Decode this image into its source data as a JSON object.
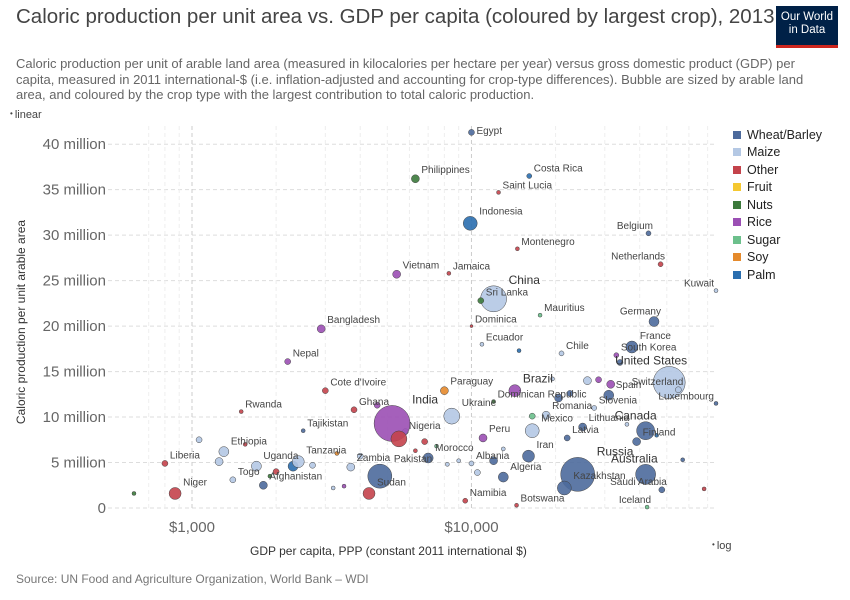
{
  "header": {
    "title": "Caloric production per unit area vs. GDP per capita (coloured by largest crop), 2013",
    "subtitle": "Caloric production per unit of arable land area (measured in kilocalories per hectare per year) versus gross domestic product (GDP) per capita, measured in 2011 international-$ (i.e. inflation-adjusted and accounting for crop-type differences). Bubble are sized by arable land area, and coloured by the crop type with the largest contribution to total caloric production.",
    "logo_line1": "Our World",
    "logo_line2": "in Data"
  },
  "footer": {
    "source": "Source: UN Food and Agriculture Organization, World Bank – WDI"
  },
  "chart_data": {
    "type": "scatter",
    "xlabel": "GDP per capita, PPP (constant 2011 international $)",
    "ylabel": "Caloric production per unit arable area",
    "x_scale": "log",
    "y_scale": "linear",
    "x_scale_label": "log",
    "y_scale_label": "linear",
    "xlim": [
      600,
      75000
    ],
    "ylim": [
      0,
      42000000
    ],
    "x_ticks": [
      {
        "value": 1000,
        "label": "$1,000"
      },
      {
        "value": 10000,
        "label": "$10,000"
      }
    ],
    "y_ticks": [
      {
        "value": 0,
        "label": "0"
      },
      {
        "value": 5000000,
        "label": "5 million"
      },
      {
        "value": 10000000,
        "label": "10 million"
      },
      {
        "value": 15000000,
        "label": "15 million"
      },
      {
        "value": 20000000,
        "label": "20 million"
      },
      {
        "value": 25000000,
        "label": "25 million"
      },
      {
        "value": 30000000,
        "label": "30 million"
      },
      {
        "value": 35000000,
        "label": "35 million"
      },
      {
        "value": 40000000,
        "label": "40 million"
      }
    ],
    "grid": true,
    "legend_position": "right",
    "legend": [
      {
        "name": "Wheat/Barley",
        "color": "#4C6A9C"
      },
      {
        "name": "Maize",
        "color": "#B4C8E4"
      },
      {
        "name": "Other",
        "color": "#C4434B"
      },
      {
        "name": "Fruit",
        "color": "#F5C830"
      },
      {
        "name": "Nuts",
        "color": "#3C7A3C"
      },
      {
        "name": "Rice",
        "color": "#9B4FB4"
      },
      {
        "name": "Sugar",
        "color": "#6CC08C"
      },
      {
        "name": "Soy",
        "color": "#E58A2C"
      },
      {
        "name": "Palm",
        "color": "#2A6EAF"
      }
    ],
    "points": [
      {
        "label": "Egypt",
        "x": 10000,
        "y": 41300000,
        "r": 3,
        "crop": "Wheat/Barley"
      },
      {
        "label": "Costa Rica",
        "x": 16100,
        "y": 36500000,
        "r": 2.5,
        "crop": "Palm"
      },
      {
        "label": "Philippines",
        "x": 6300,
        "y": 36200000,
        "r": 4,
        "crop": "Nuts"
      },
      {
        "label": "Saint Lucia",
        "x": 12500,
        "y": 34700000,
        "r": 2,
        "crop": "Other"
      },
      {
        "label": "Belgium",
        "x": 43000,
        "y": 30200000,
        "r": 2.5,
        "crop": "Wheat/Barley"
      },
      {
        "label": "Indonesia",
        "x": 9900,
        "y": 31300000,
        "r": 7,
        "crop": "Palm"
      },
      {
        "label": "Montenegro",
        "x": 14600,
        "y": 28500000,
        "r": 2,
        "crop": "Other"
      },
      {
        "label": "Netherlands",
        "x": 47500,
        "y": 26800000,
        "r": 2.5,
        "crop": "Other"
      },
      {
        "label": "Vietnam",
        "x": 5400,
        "y": 25700000,
        "r": 4,
        "crop": "Rice"
      },
      {
        "label": "Jamaica",
        "x": 8300,
        "y": 25800000,
        "r": 2,
        "crop": "Other"
      },
      {
        "label": "Kuwait",
        "x": 78000,
        "y": 23900000,
        "r": 2,
        "crop": "Maize"
      },
      {
        "label": "China",
        "x": 12000,
        "y": 23000000,
        "r": 13,
        "crop": "Maize"
      },
      {
        "label": "Sri Lanka",
        "x": 10800,
        "y": 22800000,
        "r": 3,
        "crop": "Nuts"
      },
      {
        "label": "Mauritius",
        "x": 17600,
        "y": 21200000,
        "r": 2,
        "crop": "Sugar"
      },
      {
        "label": "Germany",
        "x": 45000,
        "y": 20500000,
        "r": 5,
        "crop": "Wheat/Barley"
      },
      {
        "label": "Bangladesh",
        "x": 2900,
        "y": 19700000,
        "r": 4,
        "crop": "Rice"
      },
      {
        "label": "Dominica",
        "x": 10000,
        "y": 20000000,
        "r": 1.5,
        "crop": "Other"
      },
      {
        "label": "Ecuador",
        "x": 10900,
        "y": 18000000,
        "r": 2,
        "crop": "Maize"
      },
      {
        "label": "France",
        "x": 37500,
        "y": 17700000,
        "r": 6,
        "crop": "Wheat/Barley"
      },
      {
        "label": "Chile",
        "x": 21000,
        "y": 17000000,
        "r": 2.5,
        "crop": "Maize"
      },
      {
        "label": "South Korea",
        "x": 33000,
        "y": 16800000,
        "r": 2.5,
        "crop": "Rice"
      },
      {
        "label": "Nepal",
        "x": 2200,
        "y": 16100000,
        "r": 3,
        "crop": "Rice"
      },
      {
        "label": "United States",
        "x": 51000,
        "y": 13800000,
        "r": 16,
        "crop": "Maize"
      },
      {
        "label": "Switzerland",
        "x": 55000,
        "y": 13000000,
        "r": 3,
        "crop": "Maize"
      },
      {
        "label": "Spain",
        "x": 31000,
        "y": 12400000,
        "r": 5,
        "crop": "Wheat/Barley"
      },
      {
        "label": "Luxembourg",
        "x": 92000,
        "y": 11500000,
        "r": 2,
        "crop": "Wheat/Barley"
      },
      {
        "label": "Cote d'Ivoire",
        "x": 3000,
        "y": 12900000,
        "r": 3,
        "crop": "Other"
      },
      {
        "label": "Paraguay",
        "x": 8000,
        "y": 12900000,
        "r": 4,
        "crop": "Soy"
      },
      {
        "label": "Brazil",
        "x": 14300,
        "y": 12900000,
        "r": 6,
        "crop": "Rice"
      },
      {
        "label": "Dominican Republic",
        "x": 12000,
        "y": 11700000,
        "r": 2,
        "crop": "Nuts"
      },
      {
        "label": "Slovenia",
        "x": 27500,
        "y": 11000000,
        "r": 2.5,
        "crop": "Maize"
      },
      {
        "label": "Romania",
        "x": 18500,
        "y": 10200000,
        "r": 4,
        "crop": "Maize"
      },
      {
        "label": "Ghana",
        "x": 3800,
        "y": 10800000,
        "r": 3,
        "crop": "Other"
      },
      {
        "label": "Rwanda",
        "x": 1500,
        "y": 10600000,
        "r": 2,
        "crop": "Other"
      },
      {
        "label": "India",
        "x": 5200,
        "y": 9300000,
        "r": 18,
        "crop": "Rice"
      },
      {
        "label": "Ukraine",
        "x": 8500,
        "y": 10100000,
        "r": 8,
        "crop": "Maize"
      },
      {
        "label": "Tajikistan",
        "x": 2500,
        "y": 8500000,
        "r": 2,
        "crop": "Wheat/Barley"
      },
      {
        "label": "Canada",
        "x": 42000,
        "y": 8500000,
        "r": 9,
        "crop": "Wheat/Barley"
      },
      {
        "label": "Lithuania",
        "x": 25000,
        "y": 8900000,
        "r": 4,
        "crop": "Wheat/Barley"
      },
      {
        "label": "Mexico",
        "x": 16500,
        "y": 8500000,
        "r": 7,
        "crop": "Maize"
      },
      {
        "label": "Finland",
        "x": 39000,
        "y": 7300000,
        "r": 4,
        "crop": "Wheat/Barley"
      },
      {
        "label": "Latvia",
        "x": 22000,
        "y": 7700000,
        "r": 3,
        "crop": "Wheat/Barley"
      },
      {
        "label": "Peru",
        "x": 11000,
        "y": 7700000,
        "r": 4,
        "crop": "Rice"
      },
      {
        "label": "Nigeria",
        "x": 5500,
        "y": 7600000,
        "r": 8,
        "crop": "Other"
      },
      {
        "label": "Ethiopia",
        "x": 1300,
        "y": 6200000,
        "r": 5,
        "crop": "Maize"
      },
      {
        "label": "Iran",
        "x": 16000,
        "y": 5700000,
        "r": 6,
        "crop": "Wheat/Barley"
      },
      {
        "label": "Morocco",
        "x": 7000,
        "y": 5500000,
        "r": 5,
        "crop": "Wheat/Barley"
      },
      {
        "label": "Tanzania",
        "x": 2400,
        "y": 5100000,
        "r": 6,
        "crop": "Maize"
      },
      {
        "label": "Albania",
        "x": 10000,
        "y": 4900000,
        "r": 2.5,
        "crop": "Maize"
      },
      {
        "label": "Uganda",
        "x": 1700,
        "y": 4600000,
        "r": 5,
        "crop": "Maize"
      },
      {
        "label": "Zambia",
        "x": 3700,
        "y": 4500000,
        "r": 4,
        "crop": "Maize"
      },
      {
        "label": "Russia",
        "x": 24000,
        "y": 3700000,
        "r": 17,
        "crop": "Wheat/Barley"
      },
      {
        "label": "Australia",
        "x": 42000,
        "y": 3700000,
        "r": 10,
        "crop": "Wheat/Barley"
      },
      {
        "label": "Liberia",
        "x": 800,
        "y": 4900000,
        "r": 3,
        "crop": "Other"
      },
      {
        "label": "Pakistan",
        "x": 4700,
        "y": 3500000,
        "r": 12,
        "crop": "Wheat/Barley"
      },
      {
        "label": "Algeria",
        "x": 13000,
        "y": 3400000,
        "r": 5,
        "crop": "Wheat/Barley"
      },
      {
        "label": "Togo",
        "x": 1400,
        "y": 3100000,
        "r": 3,
        "crop": "Maize"
      },
      {
        "label": "Afghanistan",
        "x": 1800,
        "y": 2500000,
        "r": 4,
        "crop": "Wheat/Barley"
      },
      {
        "label": "Kazakhstan",
        "x": 21500,
        "y": 2200000,
        "r": 7,
        "crop": "Wheat/Barley"
      },
      {
        "label": "Saudi Arabia",
        "x": 48000,
        "y": 2000000,
        "r": 3,
        "crop": "Wheat/Barley"
      },
      {
        "label": "Sudan",
        "x": 4300,
        "y": 1600000,
        "r": 6,
        "crop": "Other"
      },
      {
        "label": "Niger",
        "x": 870,
        "y": 1600000,
        "r": 6,
        "crop": "Other"
      },
      {
        "label": "Namibia",
        "x": 9500,
        "y": 800000,
        "r": 2.5,
        "crop": "Other"
      },
      {
        "label": "Botswana",
        "x": 14500,
        "y": 300000,
        "r": 2,
        "crop": "Other"
      },
      {
        "label": "Iceland",
        "x": 42500,
        "y": 100000,
        "r": 2,
        "crop": "Sugar"
      }
    ],
    "unlabeled_points": [
      {
        "x": 1060,
        "y": 7500000,
        "r": 3,
        "crop": "Maize"
      },
      {
        "x": 620,
        "y": 1600000,
        "r": 2,
        "crop": "Nuts"
      },
      {
        "x": 1250,
        "y": 5100000,
        "r": 4,
        "crop": "Maize"
      },
      {
        "x": 1550,
        "y": 7000000,
        "r": 2,
        "crop": "Other"
      },
      {
        "x": 2000,
        "y": 4000000,
        "r": 3,
        "crop": "Other"
      },
      {
        "x": 2300,
        "y": 4600000,
        "r": 5,
        "crop": "Palm"
      },
      {
        "x": 2700,
        "y": 4700000,
        "r": 3,
        "crop": "Maize"
      },
      {
        "x": 3200,
        "y": 2200000,
        "r": 2,
        "crop": "Maize"
      },
      {
        "x": 3500,
        "y": 2400000,
        "r": 2,
        "crop": "Rice"
      },
      {
        "x": 4000,
        "y": 5700000,
        "r": 3,
        "crop": "Maize"
      },
      {
        "x": 5800,
        "y": 8400000,
        "r": 3,
        "crop": "Maize"
      },
      {
        "x": 6300,
        "y": 6300000,
        "r": 2,
        "crop": "Other"
      },
      {
        "x": 7500,
        "y": 6800000,
        "r": 2,
        "crop": "Sugar"
      },
      {
        "x": 8200,
        "y": 4800000,
        "r": 2,
        "crop": "Maize"
      },
      {
        "x": 9000,
        "y": 5200000,
        "r": 2,
        "crop": "Maize"
      },
      {
        "x": 10500,
        "y": 3900000,
        "r": 3,
        "crop": "Maize"
      },
      {
        "x": 12000,
        "y": 5200000,
        "r": 4,
        "crop": "Wheat/Barley"
      },
      {
        "x": 13000,
        "y": 6500000,
        "r": 2,
        "crop": "Maize"
      },
      {
        "x": 14800,
        "y": 17300000,
        "r": 2,
        "crop": "Palm"
      },
      {
        "x": 19500,
        "y": 14200000,
        "r": 2,
        "crop": "Maize"
      },
      {
        "x": 20500,
        "y": 12100000,
        "r": 4,
        "crop": "Wheat/Barley"
      },
      {
        "x": 26000,
        "y": 14000000,
        "r": 4,
        "crop": "Maize"
      },
      {
        "x": 28500,
        "y": 14100000,
        "r": 3,
        "crop": "Rice"
      },
      {
        "x": 31500,
        "y": 13600000,
        "r": 4,
        "crop": "Rice"
      },
      {
        "x": 34000,
        "y": 16000000,
        "r": 3,
        "crop": "Wheat/Barley"
      },
      {
        "x": 36000,
        "y": 9200000,
        "r": 2,
        "crop": "Maize"
      },
      {
        "x": 46000,
        "y": 8000000,
        "r": 2,
        "crop": "Palm"
      },
      {
        "x": 57000,
        "y": 5300000,
        "r": 2,
        "crop": "Wheat/Barley"
      },
      {
        "x": 68000,
        "y": 2100000,
        "r": 2,
        "crop": "Other"
      },
      {
        "x": 16500,
        "y": 10100000,
        "r": 3,
        "crop": "Sugar"
      },
      {
        "x": 22500,
        "y": 12600000,
        "r": 3,
        "crop": "Wheat/Barley"
      },
      {
        "x": 4600,
        "y": 11300000,
        "r": 3,
        "crop": "Rice"
      },
      {
        "x": 6800,
        "y": 7300000,
        "r": 3,
        "crop": "Other"
      },
      {
        "x": 3300,
        "y": 6000000,
        "r": 2,
        "crop": "Soy"
      },
      {
        "x": 1900,
        "y": 3500000,
        "r": 2,
        "crop": "Nuts"
      }
    ]
  }
}
